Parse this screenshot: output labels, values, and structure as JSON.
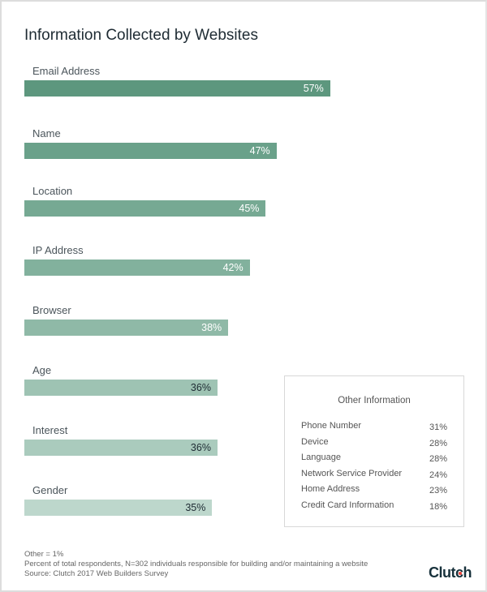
{
  "chart_data": {
    "type": "bar",
    "orientation": "horizontal",
    "title": "Information Collected by Websites",
    "categories": [
      "Email Address",
      "Name",
      "Location",
      "IP Address",
      "Browser",
      "Age",
      "Interest",
      "Gender"
    ],
    "values": [
      57,
      47,
      45,
      42,
      38,
      36,
      36,
      35
    ],
    "value_labels": [
      "57%",
      "47%",
      "45%",
      "42%",
      "38%",
      "36%",
      "36%",
      "35%"
    ],
    "colors": [
      "#5d977e",
      "#6aa18a",
      "#76a993",
      "#82b19d",
      "#8fb9a7",
      "#9ec3b3",
      "#aacbbd",
      "#bdd7cc"
    ],
    "grid": false
  },
  "other_info": {
    "title": "Other Information",
    "items": [
      {
        "name": "Phone Number",
        "value": "31%"
      },
      {
        "name": "Device",
        "value": "28%"
      },
      {
        "name": "Language",
        "value": "28%"
      },
      {
        "name": "Network Service Provider",
        "value": "24%"
      },
      {
        "name": "Home Address",
        "value": "23%"
      },
      {
        "name": "Credit Card Information",
        "value": "18%"
      }
    ]
  },
  "footer": {
    "other": "Other = 1%",
    "note": "Percent of total respondents, N=302 individuals responsible for building and/or maintaining a website",
    "source": "Source: Clutch 2017 Web Builders Survey"
  },
  "logo": "Clutch"
}
